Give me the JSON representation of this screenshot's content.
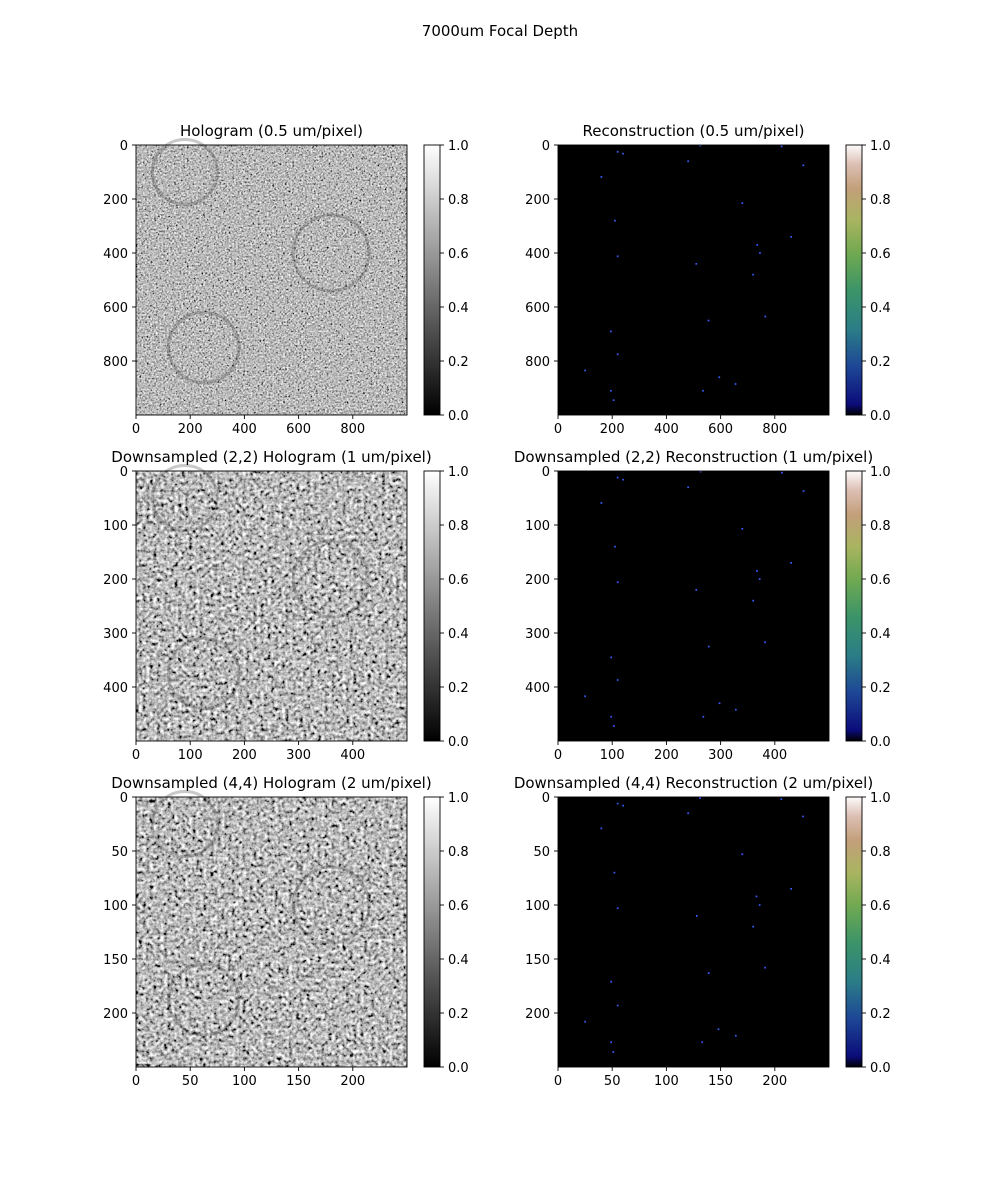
{
  "figure": {
    "title": "7000um Focal Depth"
  },
  "colors": {
    "background": "#ffffff",
    "reconstruction_background": "#000000",
    "particle_color": "#3a5cff"
  },
  "chart_data": [
    {
      "type": "heatmap",
      "title": "Hologram (0.5 um/pixel)",
      "colormap": "gray",
      "image_size": [
        1000,
        1000
      ],
      "xticks": [
        "0",
        "200",
        "400",
        "600",
        "800"
      ],
      "xtick_values": [
        0,
        200,
        400,
        600,
        800
      ],
      "yticks": [
        "0",
        "200",
        "400",
        "600",
        "800"
      ],
      "ytick_values": [
        0,
        200,
        400,
        600,
        800
      ],
      "colorbar": {
        "range": [
          0.0,
          1.0
        ],
        "ticks": [
          "0.0",
          "0.2",
          "0.4",
          "0.6",
          "0.8",
          "1.0"
        ]
      },
      "mean_intensity": 0.5
    },
    {
      "type": "heatmap",
      "title": "Reconstruction (0.5 um/pixel)",
      "colormap": "gist_earth",
      "image_size": [
        1000,
        1000
      ],
      "xticks": [
        "0",
        "200",
        "400",
        "600",
        "800"
      ],
      "xtick_values": [
        0,
        200,
        400,
        600,
        800
      ],
      "yticks": [
        "0",
        "200",
        "400",
        "600",
        "800"
      ],
      "ytick_values": [
        0,
        200,
        400,
        600,
        800
      ],
      "colorbar": {
        "range": [
          0.0,
          1.0
        ],
        "ticks": [
          "0.0",
          "0.2",
          "0.4",
          "0.6",
          "0.8",
          "1.0"
        ]
      },
      "points": [
        [
          220,
          25
        ],
        [
          240,
          32
        ],
        [
          480,
          60
        ],
        [
          525,
          2
        ],
        [
          825,
          5
        ],
        [
          905,
          75
        ],
        [
          160,
          118
        ],
        [
          680,
          215
        ],
        [
          210,
          280
        ],
        [
          860,
          340
        ],
        [
          735,
          370
        ],
        [
          745,
          400
        ],
        [
          220,
          412
        ],
        [
          510,
          440
        ],
        [
          720,
          480
        ],
        [
          555,
          650
        ],
        [
          765,
          635
        ],
        [
          195,
          690
        ],
        [
          220,
          775
        ],
        [
          595,
          860
        ],
        [
          655,
          885
        ],
        [
          100,
          835
        ],
        [
          195,
          910
        ],
        [
          535,
          910
        ],
        [
          205,
          945
        ]
      ]
    },
    {
      "type": "heatmap",
      "title": "Downsampled (2,2) Hologram (1 um/pixel)",
      "colormap": "gray",
      "image_size": [
        500,
        500
      ],
      "xticks": [
        "0",
        "100",
        "200",
        "300",
        "400"
      ],
      "xtick_values": [
        0,
        100,
        200,
        300,
        400
      ],
      "yticks": [
        "0",
        "100",
        "200",
        "300",
        "400"
      ],
      "ytick_values": [
        0,
        100,
        200,
        300,
        400
      ],
      "colorbar": {
        "range": [
          0.0,
          1.0
        ],
        "ticks": [
          "0.0",
          "0.2",
          "0.4",
          "0.6",
          "0.8",
          "1.0"
        ]
      },
      "mean_intensity": 0.5
    },
    {
      "type": "heatmap",
      "title": "Downsampled (2,2) Reconstruction (1 um/pixel)",
      "colormap": "gist_earth",
      "image_size": [
        500,
        500
      ],
      "xticks": [
        "0",
        "100",
        "200",
        "300",
        "400"
      ],
      "xtick_values": [
        0,
        100,
        200,
        300,
        400
      ],
      "yticks": [
        "0",
        "100",
        "200",
        "300",
        "400"
      ],
      "ytick_values": [
        0,
        100,
        200,
        300,
        400
      ],
      "colorbar": {
        "range": [
          0.0,
          1.0
        ],
        "ticks": [
          "0.0",
          "0.2",
          "0.4",
          "0.6",
          "0.8",
          "1.0"
        ]
      },
      "points": [
        [
          110,
          12
        ],
        [
          120,
          16
        ],
        [
          240,
          30
        ],
        [
          263,
          1
        ],
        [
          413,
          3
        ],
        [
          453,
          37
        ],
        [
          80,
          59
        ],
        [
          340,
          107
        ],
        [
          105,
          140
        ],
        [
          430,
          170
        ],
        [
          367,
          185
        ],
        [
          372,
          200
        ],
        [
          110,
          206
        ],
        [
          255,
          220
        ],
        [
          360,
          240
        ],
        [
          278,
          325
        ],
        [
          382,
          317
        ],
        [
          98,
          345
        ],
        [
          110,
          387
        ],
        [
          298,
          430
        ],
        [
          328,
          442
        ],
        [
          50,
          417
        ],
        [
          98,
          455
        ],
        [
          268,
          455
        ],
        [
          103,
          472
        ]
      ]
    },
    {
      "type": "heatmap",
      "title": "Downsampled (4,4) Hologram (2 um/pixel)",
      "colormap": "gray",
      "image_size": [
        250,
        250
      ],
      "xticks": [
        "0",
        "50",
        "100",
        "150",
        "200"
      ],
      "xtick_values": [
        0,
        50,
        100,
        150,
        200
      ],
      "yticks": [
        "0",
        "50",
        "100",
        "150",
        "200"
      ],
      "ytick_values": [
        0,
        50,
        100,
        150,
        200
      ],
      "colorbar": {
        "range": [
          0.0,
          1.0
        ],
        "ticks": [
          "0.0",
          "0.2",
          "0.4",
          "0.6",
          "0.8",
          "1.0"
        ]
      },
      "mean_intensity": 0.5
    },
    {
      "type": "heatmap",
      "title": "Downsampled (4,4) Reconstruction (2 um/pixel)",
      "colormap": "gist_earth",
      "image_size": [
        250,
        250
      ],
      "xticks": [
        "0",
        "50",
        "100",
        "150",
        "200"
      ],
      "xtick_values": [
        0,
        50,
        100,
        150,
        200
      ],
      "yticks": [
        "0",
        "50",
        "100",
        "150",
        "200"
      ],
      "ytick_values": [
        0,
        50,
        100,
        150,
        200
      ],
      "colorbar": {
        "range": [
          0.0,
          1.0
        ],
        "ticks": [
          "0.0",
          "0.2",
          "0.4",
          "0.6",
          "0.8",
          "1.0"
        ]
      },
      "points": [
        [
          55,
          6
        ],
        [
          60,
          8
        ],
        [
          120,
          15
        ],
        [
          131,
          1
        ],
        [
          206,
          2
        ],
        [
          226,
          18
        ],
        [
          40,
          29
        ],
        [
          170,
          53
        ],
        [
          52,
          70
        ],
        [
          215,
          85
        ],
        [
          183,
          92
        ],
        [
          186,
          100
        ],
        [
          55,
          103
        ],
        [
          128,
          110
        ],
        [
          180,
          120
        ],
        [
          139,
          163
        ],
        [
          191,
          158
        ],
        [
          49,
          171
        ],
        [
          55,
          193
        ],
        [
          148,
          215
        ],
        [
          164,
          221
        ],
        [
          25,
          208
        ],
        [
          49,
          227
        ],
        [
          133,
          227
        ],
        [
          51,
          236
        ]
      ]
    }
  ]
}
